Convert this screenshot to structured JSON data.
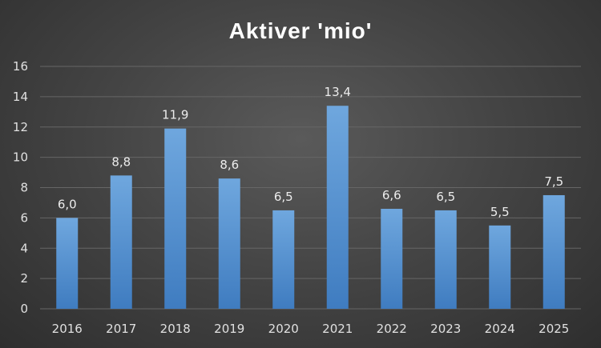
{
  "chart_data": {
    "type": "bar",
    "title": "Aktiver 'mio'",
    "xlabel": "",
    "ylabel": "",
    "categories": [
      "2016",
      "2017",
      "2018",
      "2019",
      "2020",
      "2021",
      "2022",
      "2023",
      "2024",
      "2025"
    ],
    "values": [
      6.0,
      8.8,
      11.9,
      8.6,
      6.5,
      13.4,
      6.6,
      6.5,
      5.5,
      7.5
    ],
    "data_labels": [
      "6,0",
      "8,8",
      "11,9",
      "8,6",
      "6,5",
      "13,4",
      "6,6",
      "6,5",
      "5,5",
      "7,5"
    ],
    "ylim": [
      0,
      16
    ],
    "yticks": [
      0,
      2,
      4,
      6,
      8,
      10,
      12,
      14,
      16
    ],
    "grid": true,
    "legend": "none",
    "colors": {
      "bar_top": "#6fa7de",
      "bar_bottom": "#3f7cc0",
      "gridline": "#666666",
      "text": "#e0e0e0"
    }
  }
}
